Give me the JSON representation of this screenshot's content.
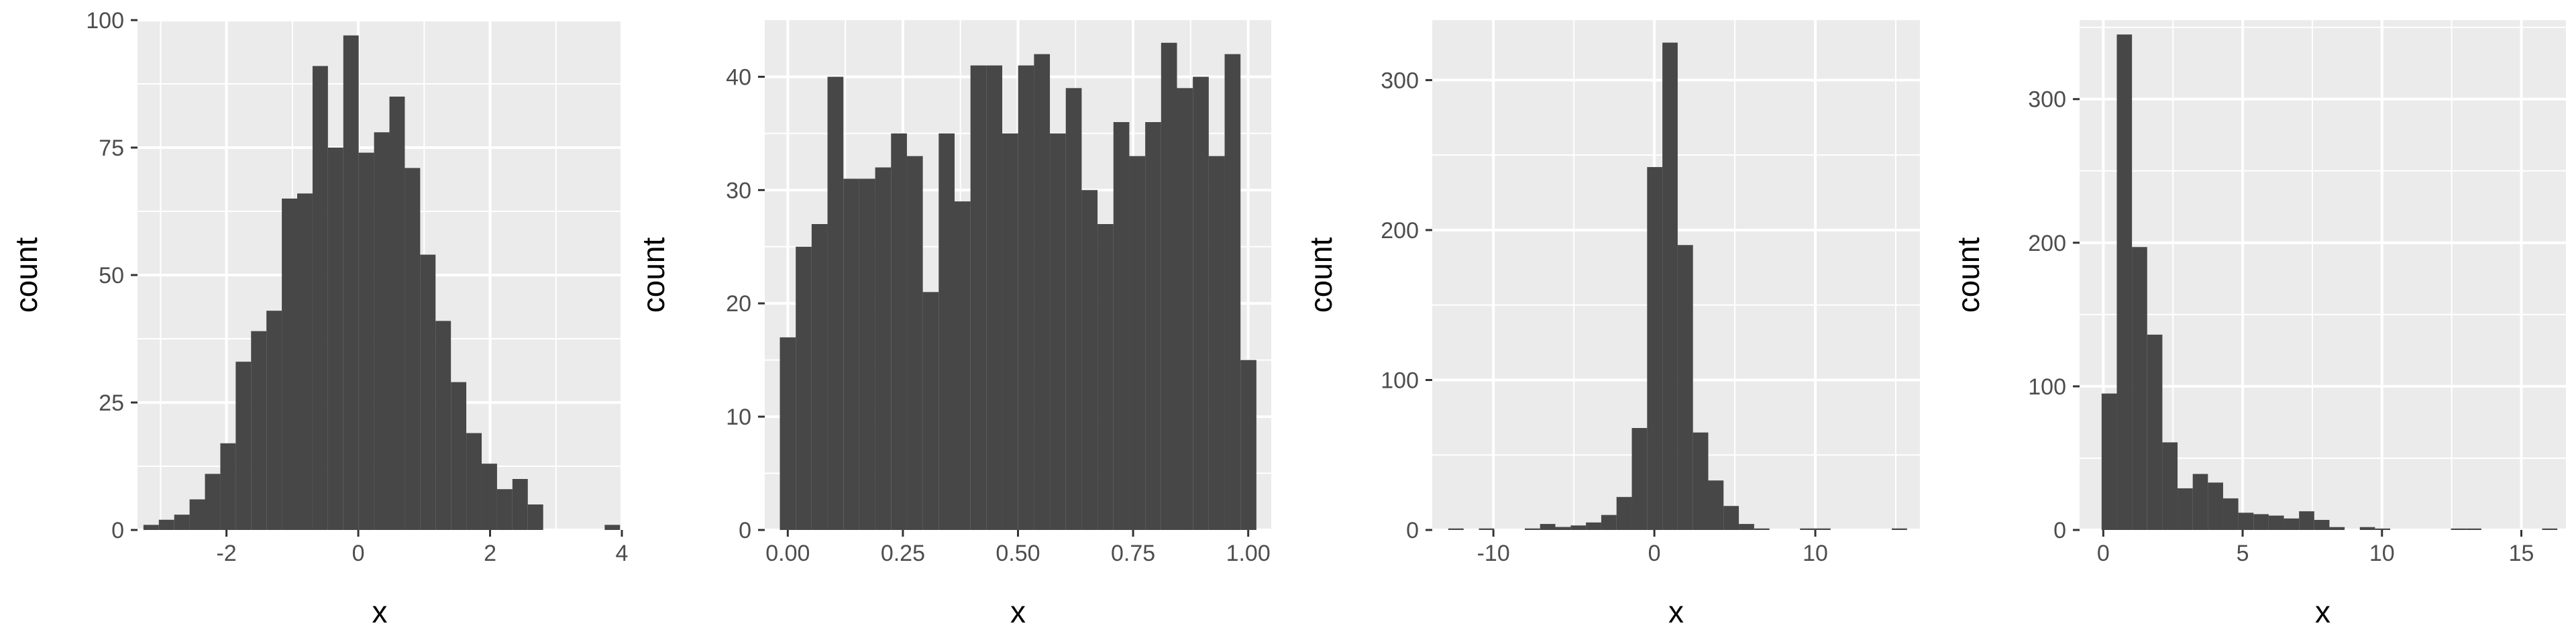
{
  "style": {
    "panel_background": "#ebebeb",
    "major_grid": "#ffffff",
    "bar_fill": "#474747",
    "tick_text": "#4d4d4d",
    "tick_mark": "#333333"
  },
  "chart_data": [
    {
      "type": "bar",
      "xlabel": "x",
      "ylabel": "count",
      "xlim": [
        -3.35,
        4.0
      ],
      "ylim": [
        0,
        100
      ],
      "xticks": [
        -2,
        0,
        2,
        4
      ],
      "yticks": [
        0,
        25,
        50,
        75,
        100
      ],
      "x_tick_labels": [
        "-2",
        "0",
        "2",
        "4"
      ],
      "y_tick_labels": [
        "0",
        "25",
        "50",
        "75",
        "100"
      ],
      "bin_start": -3.26,
      "bin_width": 0.2333,
      "values": [
        1,
        2,
        3,
        6,
        11,
        17,
        33,
        39,
        43,
        65,
        66,
        91,
        75,
        97,
        74,
        78,
        85,
        71,
        54,
        41,
        29,
        19,
        13,
        8,
        10,
        5,
        0,
        0,
        0,
        0,
        1
      ]
    },
    {
      "type": "bar",
      "xlabel": "x",
      "ylabel": "count",
      "xlim": [
        -0.05,
        1.05
      ],
      "ylim": [
        0,
        45
      ],
      "xticks": [
        0.0,
        0.25,
        0.5,
        0.75,
        1.0
      ],
      "yticks": [
        0,
        10,
        20,
        30,
        40
      ],
      "x_tick_labels": [
        "0.00",
        "0.25",
        "0.50",
        "0.75",
        "1.00"
      ],
      "y_tick_labels": [
        "0",
        "10",
        "20",
        "30",
        "40"
      ],
      "bin_start": -0.0172,
      "bin_width": 0.0345,
      "values": [
        17,
        25,
        27,
        40,
        31,
        31,
        32,
        35,
        33,
        21,
        35,
        29,
        41,
        41,
        35,
        41,
        42,
        35,
        39,
        30,
        27,
        36,
        33,
        36,
        43,
        39,
        40,
        33,
        42,
        15
      ]
    },
    {
      "type": "bar",
      "xlabel": "x",
      "ylabel": "count",
      "xlim": [
        -13.8,
        16.5
      ],
      "ylim": [
        0,
        340
      ],
      "xticks": [
        -10,
        0,
        10
      ],
      "yticks": [
        0,
        100,
        200,
        300
      ],
      "x_tick_labels": [
        "-10",
        "0",
        "10"
      ],
      "y_tick_labels": [
        "0",
        "100",
        "200",
        "300"
      ],
      "bin_start": -12.8,
      "bin_width": 0.95,
      "values": [
        1,
        0,
        1,
        0,
        0,
        1,
        4,
        2,
        3,
        5,
        10,
        22,
        68,
        242,
        325,
        190,
        65,
        33,
        16,
        4,
        1,
        0,
        0,
        1,
        1,
        0,
        0,
        0,
        0,
        1
      ]
    },
    {
      "type": "bar",
      "xlabel": "x",
      "ylabel": "count",
      "xlim": [
        -0.85,
        16.6
      ],
      "ylim": [
        0,
        355
      ],
      "xticks": [
        0,
        5,
        10,
        15
      ],
      "yticks": [
        0,
        100,
        200,
        300
      ],
      "x_tick_labels": [
        "0",
        "5",
        "10",
        "15"
      ],
      "y_tick_labels": [
        "0",
        "100",
        "200",
        "300"
      ],
      "bin_start": -0.06,
      "bin_width": 0.545,
      "values": [
        95,
        345,
        197,
        136,
        61,
        29,
        39,
        33,
        22,
        12,
        11,
        10,
        8,
        13,
        7,
        2,
        0,
        2,
        1,
        0,
        0,
        0,
        0,
        1,
        1,
        0,
        0,
        0,
        0,
        1
      ]
    }
  ]
}
